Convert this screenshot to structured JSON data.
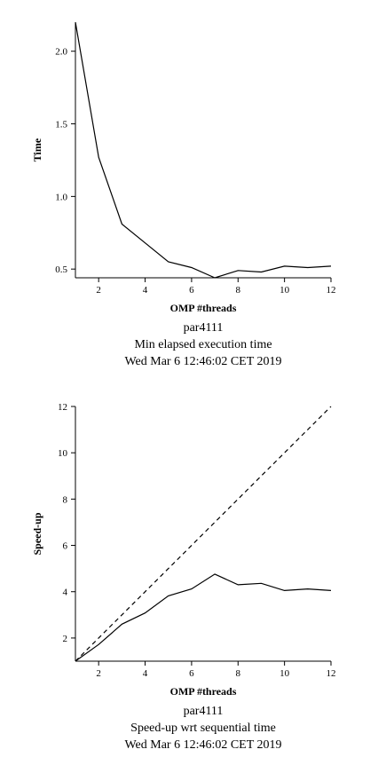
{
  "chart_data": [
    {
      "type": "line",
      "xlabel": "OMP #threads",
      "ylabel": "Time",
      "xlim": [
        1,
        12
      ],
      "ylim": [
        0.44,
        2.2
      ],
      "xticks": [
        2,
        4,
        6,
        8,
        10,
        12
      ],
      "yticks": [
        0.5,
        1.0,
        1.5,
        2.0
      ],
      "ytick_labels": [
        "0.5",
        "1.0",
        "1.5",
        "2.0"
      ],
      "grid": false,
      "series": [
        {
          "x": [
            1,
            2,
            3,
            4,
            5,
            6,
            7,
            8,
            9,
            10,
            11,
            12
          ],
          "values": [
            2.2,
            1.27,
            0.81,
            0.68,
            0.55,
            0.51,
            0.44,
            0.49,
            0.48,
            0.52,
            0.51,
            0.52
          ],
          "style": "solid",
          "color": "#000000"
        }
      ],
      "captions": [
        "par4111",
        "Min elapsed execution time",
        "Wed Mar  6 12:46:02 CET 2019"
      ]
    },
    {
      "type": "line",
      "xlabel": "OMP #threads",
      "ylabel": "Speed-up",
      "xlim": [
        1,
        12
      ],
      "ylim": [
        1,
        12
      ],
      "xticks": [
        2,
        4,
        6,
        8,
        10,
        12
      ],
      "yticks": [
        2,
        4,
        6,
        8,
        10,
        12
      ],
      "ytick_labels": [
        "2",
        "4",
        "6",
        "8",
        "10",
        "12"
      ],
      "grid": false,
      "series": [
        {
          "x": [
            1,
            12
          ],
          "values": [
            1,
            12
          ],
          "style": "dashed",
          "color": "#000000"
        },
        {
          "x": [
            1,
            2,
            3,
            4,
            5,
            6,
            7,
            8,
            9,
            10,
            11,
            12
          ],
          "values": [
            1.0,
            1.72,
            2.6,
            3.08,
            3.82,
            4.12,
            4.76,
            4.3,
            4.36,
            4.05,
            4.12,
            4.05
          ],
          "style": "solid",
          "color": "#000000"
        }
      ],
      "captions": [
        "par4111",
        "Speed-up wrt sequential time",
        "Wed Mar  6 12:46:02 CET 2019"
      ]
    }
  ]
}
